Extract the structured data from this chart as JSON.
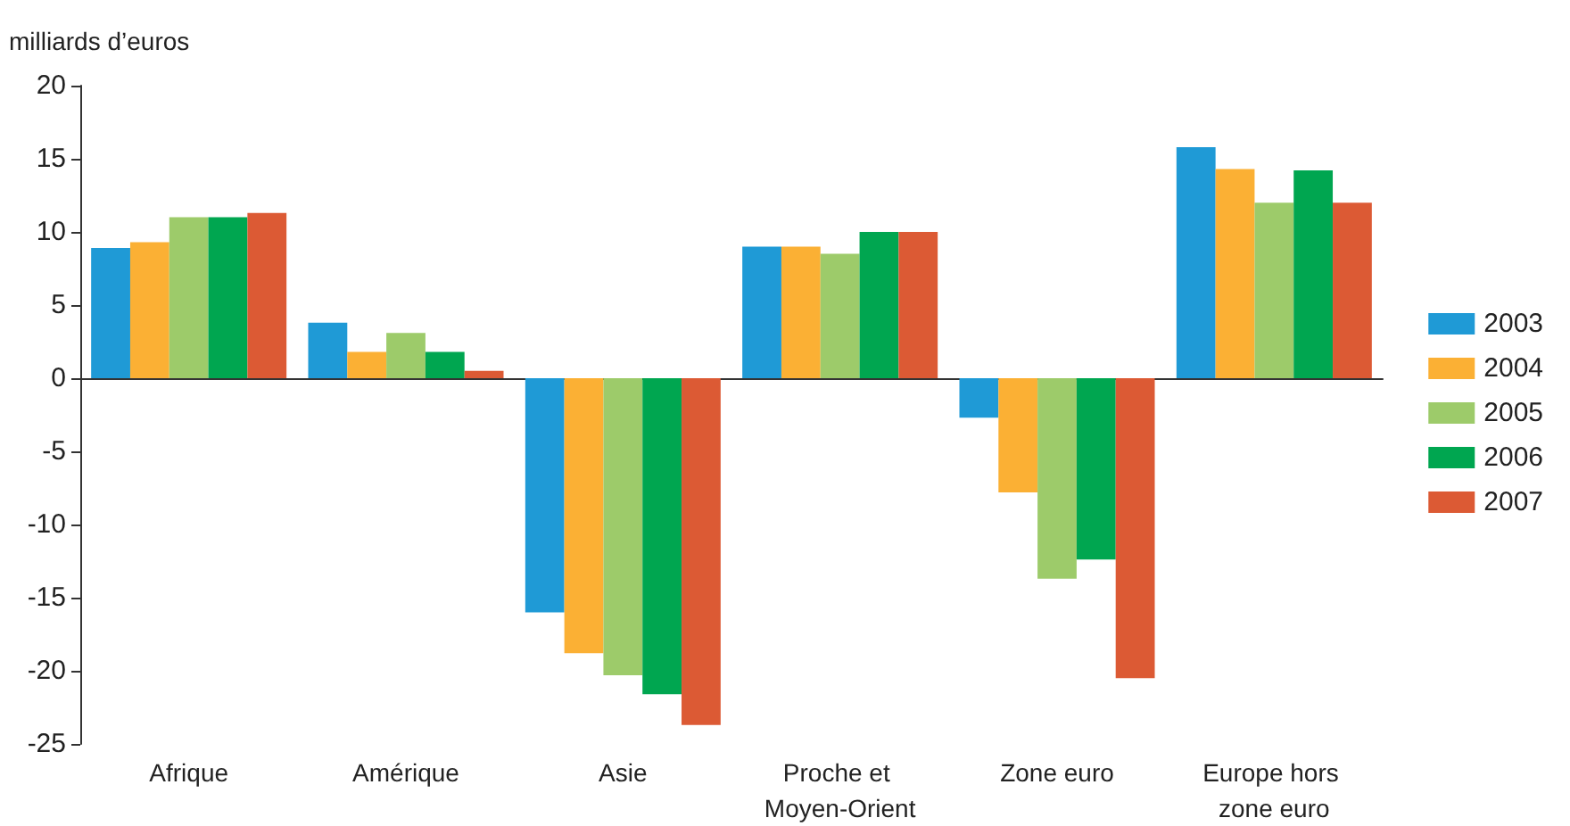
{
  "chart_data": {
    "type": "bar",
    "ylabel": "milliards d’euros",
    "categories": [
      "Afrique",
      "Amérique",
      "Asie",
      "Proche et Moyen-Orient",
      "Zone euro",
      "Europe hors zone euro"
    ],
    "series": [
      {
        "name": "2003",
        "color": "#1f9ad6",
        "values": [
          8.9,
          3.8,
          -16.0,
          9.0,
          -2.7,
          15.8
        ]
      },
      {
        "name": "2004",
        "color": "#fbb034",
        "values": [
          9.3,
          1.8,
          -18.8,
          9.0,
          -7.8,
          14.3
        ]
      },
      {
        "name": "2005",
        "color": "#9dcb6a",
        "values": [
          11.0,
          3.1,
          -20.3,
          8.5,
          -13.7,
          12.0
        ]
      },
      {
        "name": "2006",
        "color": "#00a650",
        "values": [
          11.0,
          1.8,
          -21.6,
          10.0,
          -12.4,
          14.2
        ]
      },
      {
        "name": "2007",
        "color": "#dc5a34",
        "values": [
          11.3,
          0.5,
          -23.7,
          10.0,
          -20.5,
          12.0
        ]
      }
    ],
    "ylim": [
      -25,
      20
    ],
    "yticks": [
      -25,
      -20,
      -15,
      -10,
      -5,
      0,
      5,
      10,
      15,
      20
    ],
    "legend": "right"
  }
}
